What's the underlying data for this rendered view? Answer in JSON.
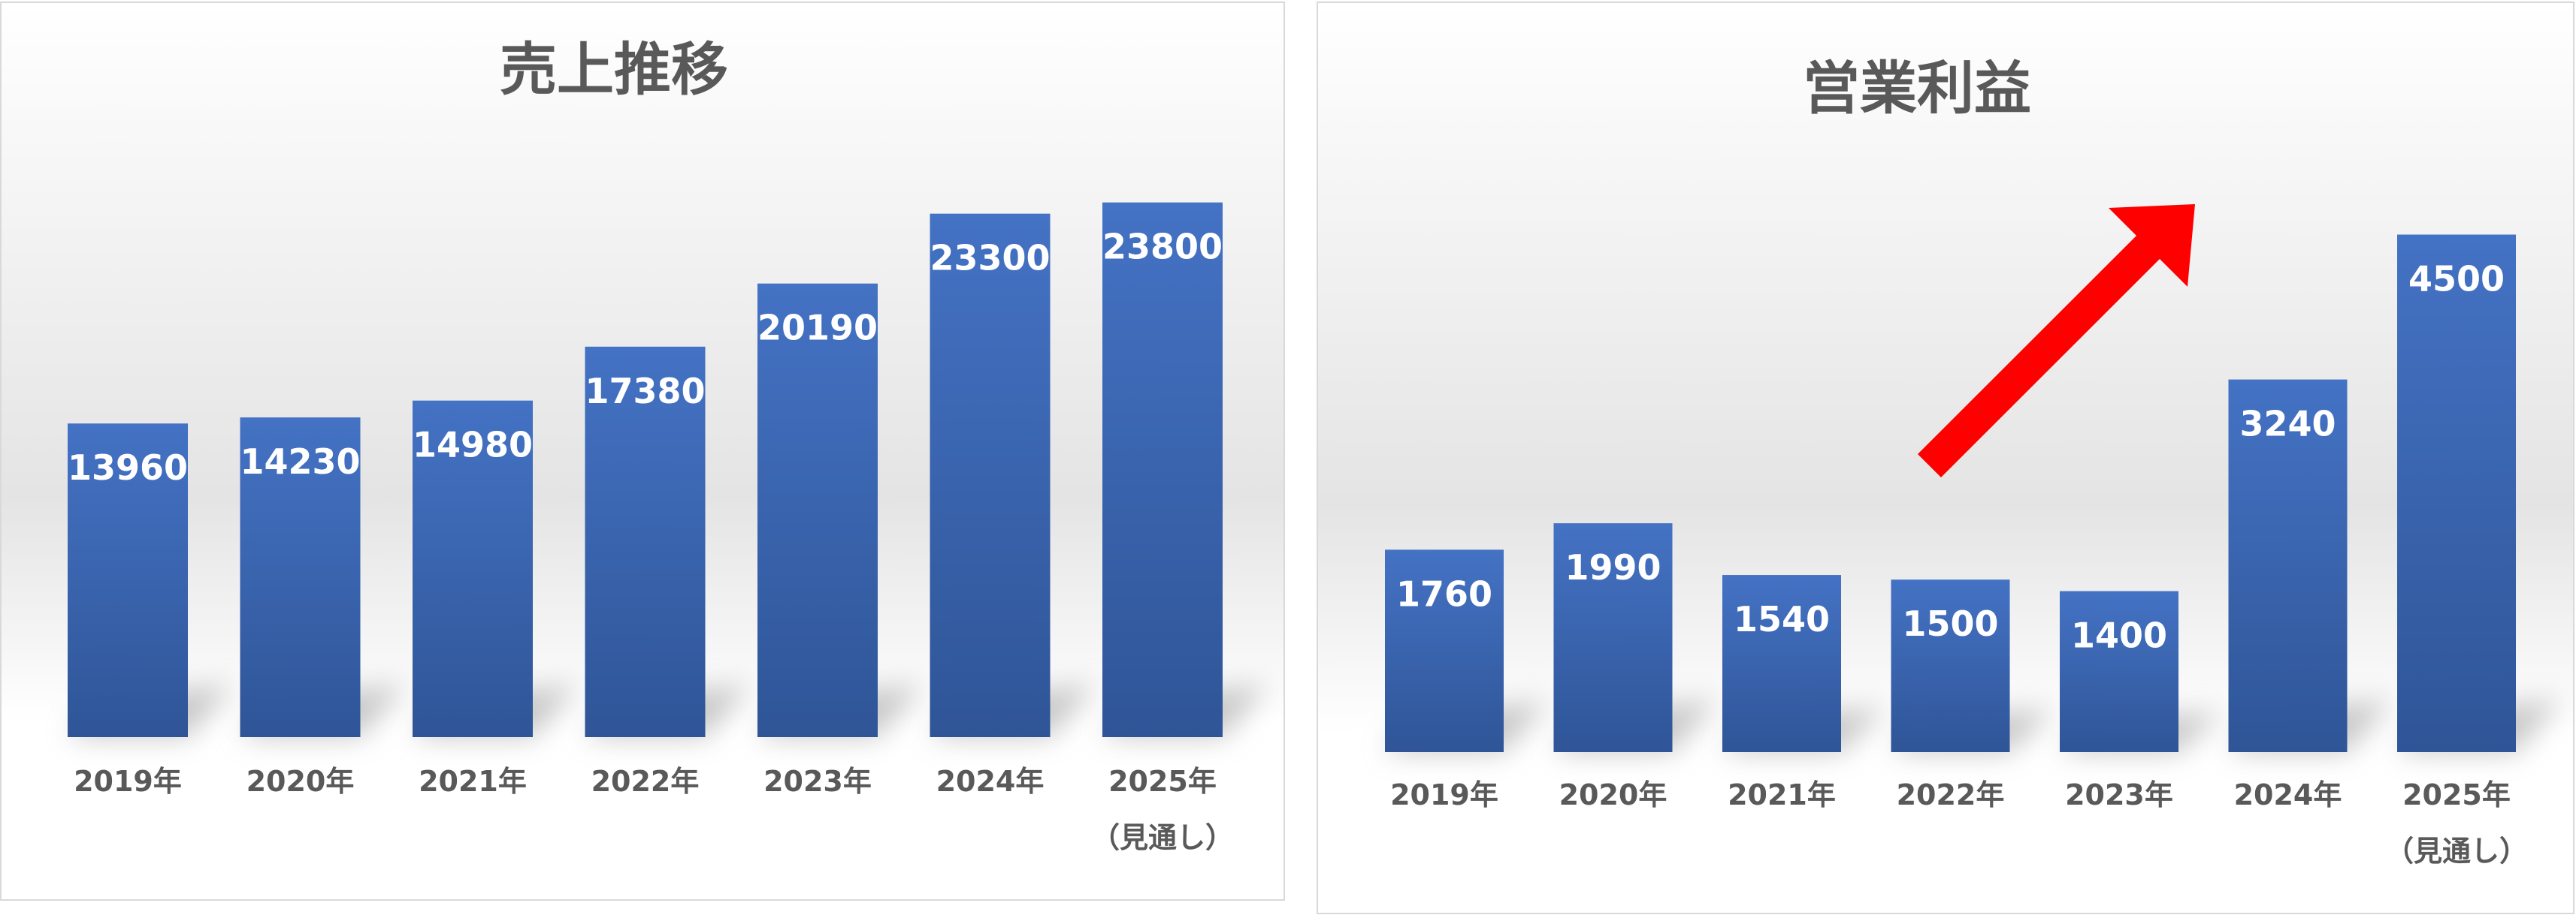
{
  "colors": {
    "bar_top": "#4472C4",
    "bar_bottom": "#2F5597",
    "title": "#595959",
    "label": "#ffffff",
    "arrow": "#FF0000"
  },
  "chart_data": [
    {
      "type": "bar",
      "title": "売上推移",
      "categories": [
        "2019年",
        "2020年",
        "2021年",
        "2022年",
        "2023年",
        "2024年",
        "2025年"
      ],
      "category_sub": [
        "",
        "",
        "",
        "",
        "",
        "",
        "（見通し）"
      ],
      "values": [
        13960,
        14230,
        14980,
        17380,
        20190,
        23300,
        23800
      ],
      "data_labels": [
        "13960",
        "14230",
        "14980",
        "17380",
        "20190",
        "23300",
        "23800"
      ],
      "ylim": [
        0,
        28000
      ],
      "grid": false,
      "legend": "none"
    },
    {
      "type": "bar",
      "title": "営業利益",
      "categories": [
        "2019年",
        "2020年",
        "2021年",
        "2022年",
        "2023年",
        "2024年",
        "2025年"
      ],
      "category_sub": [
        "",
        "",
        "",
        "",
        "",
        "",
        "（見通し）"
      ],
      "values": [
        1760,
        1990,
        1540,
        1500,
        1400,
        3240,
        4500
      ],
      "data_labels": [
        "1760",
        "1990",
        "1540",
        "1500",
        "1400",
        "3240",
        "4500"
      ],
      "ylim": [
        0,
        5600
      ],
      "grid": false,
      "legend": "none",
      "annotation": "red-upward-arrow"
    }
  ]
}
